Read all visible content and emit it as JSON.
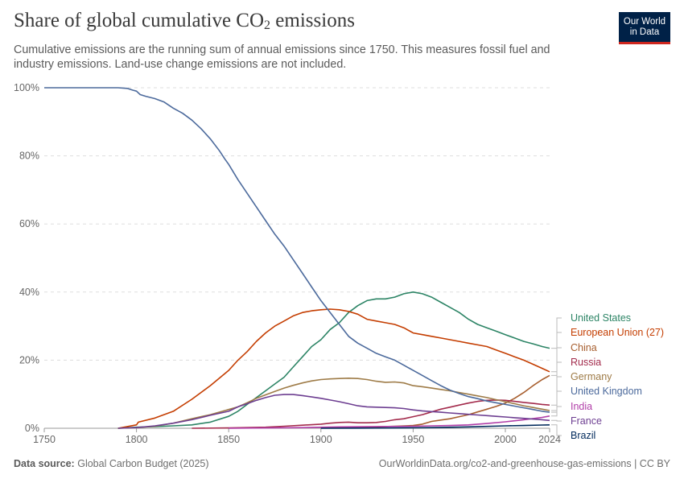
{
  "header": {
    "title_main": "Share of global cumulative CO",
    "title_sub": "2",
    "title_end": " emissions",
    "subtitle": "Cumulative emissions are the running sum of annual emissions since 1750. This measures fossil fuel and industry emissions. Land-use change emissions are not included.",
    "logo_line1": "Our World",
    "logo_line2": "in Data"
  },
  "footer": {
    "source_label": "Data source:",
    "source_value": "Global Carbon Budget (2025)",
    "url": "OurWorldinData.org/co2-and-greenhouse-gas-emissions | CC BY"
  },
  "chart_data": {
    "type": "line",
    "title": "Share of global cumulative CO₂ emissions",
    "xlim": [
      1750,
      2024
    ],
    "ylim": [
      0,
      100
    ],
    "y_unit": "%",
    "x_ticks": [
      1750,
      1800,
      1850,
      1900,
      1950,
      2000,
      2024
    ],
    "y_ticks": [
      0,
      20,
      40,
      60,
      80,
      100
    ],
    "y_tick_labels": [
      "0%",
      "20%",
      "40%",
      "60%",
      "80%",
      "100%"
    ],
    "grid": "horizontal dashed",
    "legend": "right, line-end labels",
    "series": [
      {
        "name": "United States",
        "color": "#2c8465",
        "x": [
          1790,
          1800,
          1810,
          1820,
          1830,
          1840,
          1850,
          1855,
          1860,
          1865,
          1870,
          1875,
          1880,
          1885,
          1890,
          1895,
          1900,
          1905,
          1910,
          1915,
          1920,
          1925,
          1930,
          1935,
          1940,
          1945,
          1950,
          1955,
          1960,
          1965,
          1970,
          1975,
          1980,
          1985,
          1990,
          1995,
          2000,
          2005,
          2010,
          2015,
          2020,
          2024
        ],
        "y": [
          0,
          0.3,
          0.5,
          0.7,
          1,
          1.8,
          3.5,
          5,
          7,
          9,
          11,
          13,
          15,
          18,
          21,
          24,
          26,
          29,
          31,
          34,
          36,
          37.5,
          38,
          38,
          38.5,
          39.5,
          40,
          39.5,
          38.5,
          37,
          35.5,
          34,
          32,
          30.5,
          29.5,
          28.5,
          27.5,
          26.5,
          25.5,
          24.8,
          24,
          23.5
        ]
      },
      {
        "name": "European Union (27)",
        "color": "#c43d00",
        "x": [
          1790,
          1800,
          1801,
          1810,
          1820,
          1830,
          1840,
          1850,
          1855,
          1860,
          1865,
          1870,
          1875,
          1880,
          1885,
          1890,
          1895,
          1900,
          1905,
          1910,
          1915,
          1920,
          1925,
          1930,
          1935,
          1940,
          1945,
          1950,
          1955,
          1960,
          1965,
          1970,
          1975,
          1980,
          1985,
          1990,
          1995,
          2000,
          2005,
          2010,
          2015,
          2020,
          2024
        ],
        "y": [
          0,
          1,
          1.8,
          3,
          5,
          8.5,
          12.5,
          17,
          20,
          22.5,
          25.5,
          28,
          30,
          31.5,
          33,
          34,
          34.5,
          34.8,
          35,
          34.8,
          34.3,
          33.5,
          32,
          31.5,
          31,
          30.5,
          29.5,
          28,
          27.5,
          27,
          26.5,
          26,
          25.5,
          25,
          24.5,
          24,
          23,
          22,
          21,
          20,
          18.8,
          17.6,
          16.6
        ]
      },
      {
        "name": "China",
        "color": "#a75e2e",
        "x": [
          1900,
          1910,
          1920,
          1930,
          1940,
          1950,
          1955,
          1960,
          1965,
          1970,
          1975,
          1980,
          1985,
          1990,
          1995,
          2000,
          2005,
          2010,
          2015,
          2020,
          2024
        ],
        "y": [
          0.1,
          0.2,
          0.3,
          0.4,
          0.6,
          0.8,
          1.2,
          2,
          2.4,
          2.8,
          3.4,
          4,
          4.8,
          5.6,
          6.4,
          7.4,
          8.8,
          10.5,
          12.5,
          14.3,
          15.5
        ]
      },
      {
        "name": "Russia",
        "color": "#a32b4c",
        "x": [
          1830,
          1850,
          1870,
          1880,
          1890,
          1900,
          1905,
          1910,
          1915,
          1920,
          1925,
          1930,
          1935,
          1940,
          1945,
          1950,
          1955,
          1960,
          1965,
          1970,
          1975,
          1980,
          1985,
          1990,
          1995,
          2000,
          2005,
          2010,
          2015,
          2020,
          2024
        ],
        "y": [
          0,
          0.1,
          0.3,
          0.6,
          0.9,
          1.2,
          1.5,
          1.7,
          1.8,
          1.6,
          1.6,
          1.7,
          2,
          2.5,
          2.8,
          3.4,
          4,
          4.8,
          5.6,
          6.2,
          6.8,
          7.4,
          7.9,
          8.2,
          8.3,
          8.2,
          7.9,
          7.6,
          7.3,
          7,
          6.8
        ]
      },
      {
        "name": "Germany",
        "color": "#9e7b47",
        "x": [
          1790,
          1800,
          1810,
          1820,
          1830,
          1840,
          1850,
          1855,
          1860,
          1865,
          1870,
          1875,
          1880,
          1885,
          1890,
          1895,
          1900,
          1905,
          1910,
          1915,
          1920,
          1925,
          1930,
          1935,
          1940,
          1945,
          1950,
          1955,
          1960,
          1965,
          1970,
          1975,
          1980,
          1985,
          1990,
          1995,
          2000,
          2005,
          2010,
          2015,
          2020,
          2024
        ],
        "y": [
          0,
          0.2,
          0.6,
          1.5,
          2.8,
          4,
          5.5,
          6.3,
          7.5,
          8.8,
          9.8,
          10.8,
          11.8,
          12.6,
          13.3,
          13.9,
          14.3,
          14.5,
          14.6,
          14.7,
          14.6,
          14.3,
          13.8,
          13.5,
          13.6,
          13.3,
          12.5,
          12.2,
          11.8,
          11.4,
          11,
          10.5,
          10,
          9.5,
          9,
          8.4,
          7.8,
          7.2,
          6.6,
          6.1,
          5.6,
          5.2
        ]
      },
      {
        "name": "United Kingdom",
        "color": "#4c6a9c",
        "x": [
          1750,
          1760,
          1770,
          1780,
          1790,
          1795,
          1798,
          1800,
          1802,
          1805,
          1810,
          1815,
          1820,
          1825,
          1830,
          1835,
          1840,
          1845,
          1848,
          1850,
          1855,
          1860,
          1865,
          1870,
          1875,
          1880,
          1885,
          1890,
          1895,
          1900,
          1905,
          1910,
          1915,
          1920,
          1925,
          1930,
          1935,
          1940,
          1945,
          1950,
          1955,
          1960,
          1965,
          1970,
          1975,
          1980,
          1985,
          1990,
          1995,
          2000,
          2005,
          2010,
          2015,
          2020,
          2024
        ],
        "y": [
          100,
          100,
          100,
          100,
          100,
          99.8,
          99.3,
          99,
          98,
          97.5,
          96.8,
          95.8,
          94,
          92.5,
          90.5,
          88,
          85,
          81.5,
          79,
          77.5,
          73,
          69,
          65,
          61,
          57,
          53.5,
          49.5,
          45.5,
          41.5,
          37.5,
          34,
          30.5,
          27,
          25,
          23.5,
          22,
          21,
          20,
          18.5,
          17,
          15.5,
          14,
          12.5,
          11.2,
          10.2,
          9.3,
          8.7,
          8,
          7.5,
          7,
          6.5,
          6,
          5.5,
          5,
          4.7
        ]
      },
      {
        "name": "India",
        "color": "#b13ea8",
        "x": [
          1850,
          1870,
          1890,
          1910,
          1930,
          1950,
          1960,
          1970,
          1980,
          1990,
          2000,
          2010,
          2020,
          2024
        ],
        "y": [
          0,
          0.1,
          0.2,
          0.4,
          0.5,
          0.6,
          0.7,
          0.8,
          1,
          1.4,
          1.9,
          2.5,
          3.2,
          3.6
        ]
      },
      {
        "name": "France",
        "color": "#6d3e91",
        "x": [
          1790,
          1800,
          1810,
          1820,
          1830,
          1840,
          1850,
          1855,
          1860,
          1865,
          1870,
          1875,
          1880,
          1885,
          1890,
          1895,
          1900,
          1905,
          1910,
          1915,
          1920,
          1925,
          1930,
          1935,
          1940,
          1945,
          1950,
          1955,
          1960,
          1965,
          1970,
          1975,
          1980,
          1985,
          1990,
          1995,
          2000,
          2005,
          2010,
          2015,
          2020,
          2024
        ],
        "y": [
          0,
          0.2,
          0.7,
          1.5,
          2.5,
          3.8,
          5,
          6.3,
          7.2,
          8.2,
          9,
          9.7,
          9.9,
          9.9,
          9.6,
          9.2,
          8.8,
          8.3,
          7.8,
          7.2,
          6.6,
          6.3,
          6.2,
          6.1,
          6,
          5.8,
          5.4,
          5.1,
          4.9,
          4.7,
          4.5,
          4.3,
          4.1,
          3.9,
          3.7,
          3.5,
          3.3,
          3.1,
          2.9,
          2.7,
          2.5,
          2.3
        ]
      },
      {
        "name": "Brazil",
        "color": "#00295b",
        "x": [
          1900,
          1920,
          1940,
          1960,
          1980,
          2000,
          2010,
          2020,
          2024
        ],
        "y": [
          0,
          0.05,
          0.1,
          0.2,
          0.4,
          0.7,
          0.8,
          0.95,
          1
        ]
      }
    ]
  }
}
